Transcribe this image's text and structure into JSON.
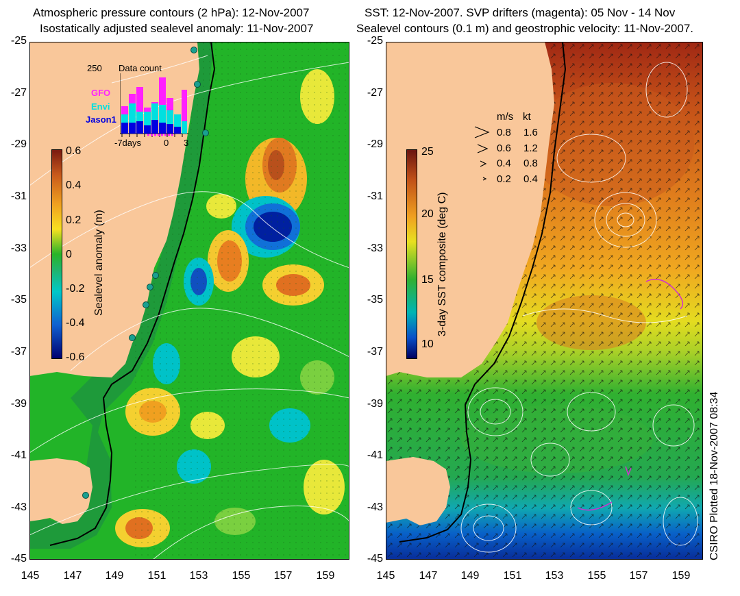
{
  "left_panel": {
    "title_line1": "Atmospheric pressure contours (2 hPa): 12-Nov-2007",
    "title_line2": "Isostatically adjusted sealevel anomaly: 11-Nov-2007",
    "colorbar": {
      "label": "Sealevel anomaly (m)",
      "ticks": [
        "0.6",
        "0.4",
        "0.2",
        "0",
        "-0.2",
        "-0.4",
        "-0.6"
      ],
      "colors": [
        "#7a1a10",
        "#c85a1c",
        "#f0a020",
        "#f8e020",
        "#28b428",
        "#00c8c8",
        "#1060d0",
        "#000070"
      ]
    },
    "inset": {
      "title": "Data count",
      "ymax_label": "250",
      "x_ticks": [
        "-7days",
        "0",
        "3"
      ],
      "satellites": [
        {
          "name": "GFO",
          "color": "#ff20ff"
        },
        {
          "name": "Envi",
          "color": "#00e0e0"
        },
        {
          "name": "Jason1",
          "color": "#0000e0"
        }
      ]
    }
  },
  "right_panel": {
    "title_line1": "SST: 12-Nov-2007. SVP drifters (magenta): 05 Nov - 14 Nov",
    "title_line2": "Sealevel contours (0.1 m) and geostrophic velocity: 11-Nov-2007.",
    "colorbar": {
      "label": "3-day SST composite (deg C)",
      "ticks": [
        "25",
        "20",
        "15",
        "10"
      ],
      "colors": [
        "#6a1410",
        "#c05018",
        "#f0a020",
        "#e8e020",
        "#30b030",
        "#00b4b4",
        "#0850c8",
        "#000060"
      ]
    },
    "speed_legend": {
      "header_ms": "m/s",
      "header_kt": "kt",
      "rows": [
        {
          "ms": "0.8",
          "kt": "1.6"
        },
        {
          "ms": "0.6",
          "kt": "1.2"
        },
        {
          "ms": "0.4",
          "kt": "0.8"
        },
        {
          "ms": "0.2",
          "kt": "0.4"
        }
      ]
    }
  },
  "axes": {
    "lat_ticks": [
      "-25",
      "-27",
      "-29",
      "-31",
      "-33",
      "-35",
      "-37",
      "-39",
      "-41",
      "-43",
      "-45"
    ],
    "lon_ticks": [
      "145",
      "147",
      "149",
      "151",
      "153",
      "155",
      "157",
      "159"
    ]
  },
  "credit": "CSIRO Plotted 18-Nov-2007 08:34",
  "colors": {
    "land": "#f9c79a",
    "ocean_green": "#22b428",
    "shelf_green": "#1e9a3a"
  }
}
